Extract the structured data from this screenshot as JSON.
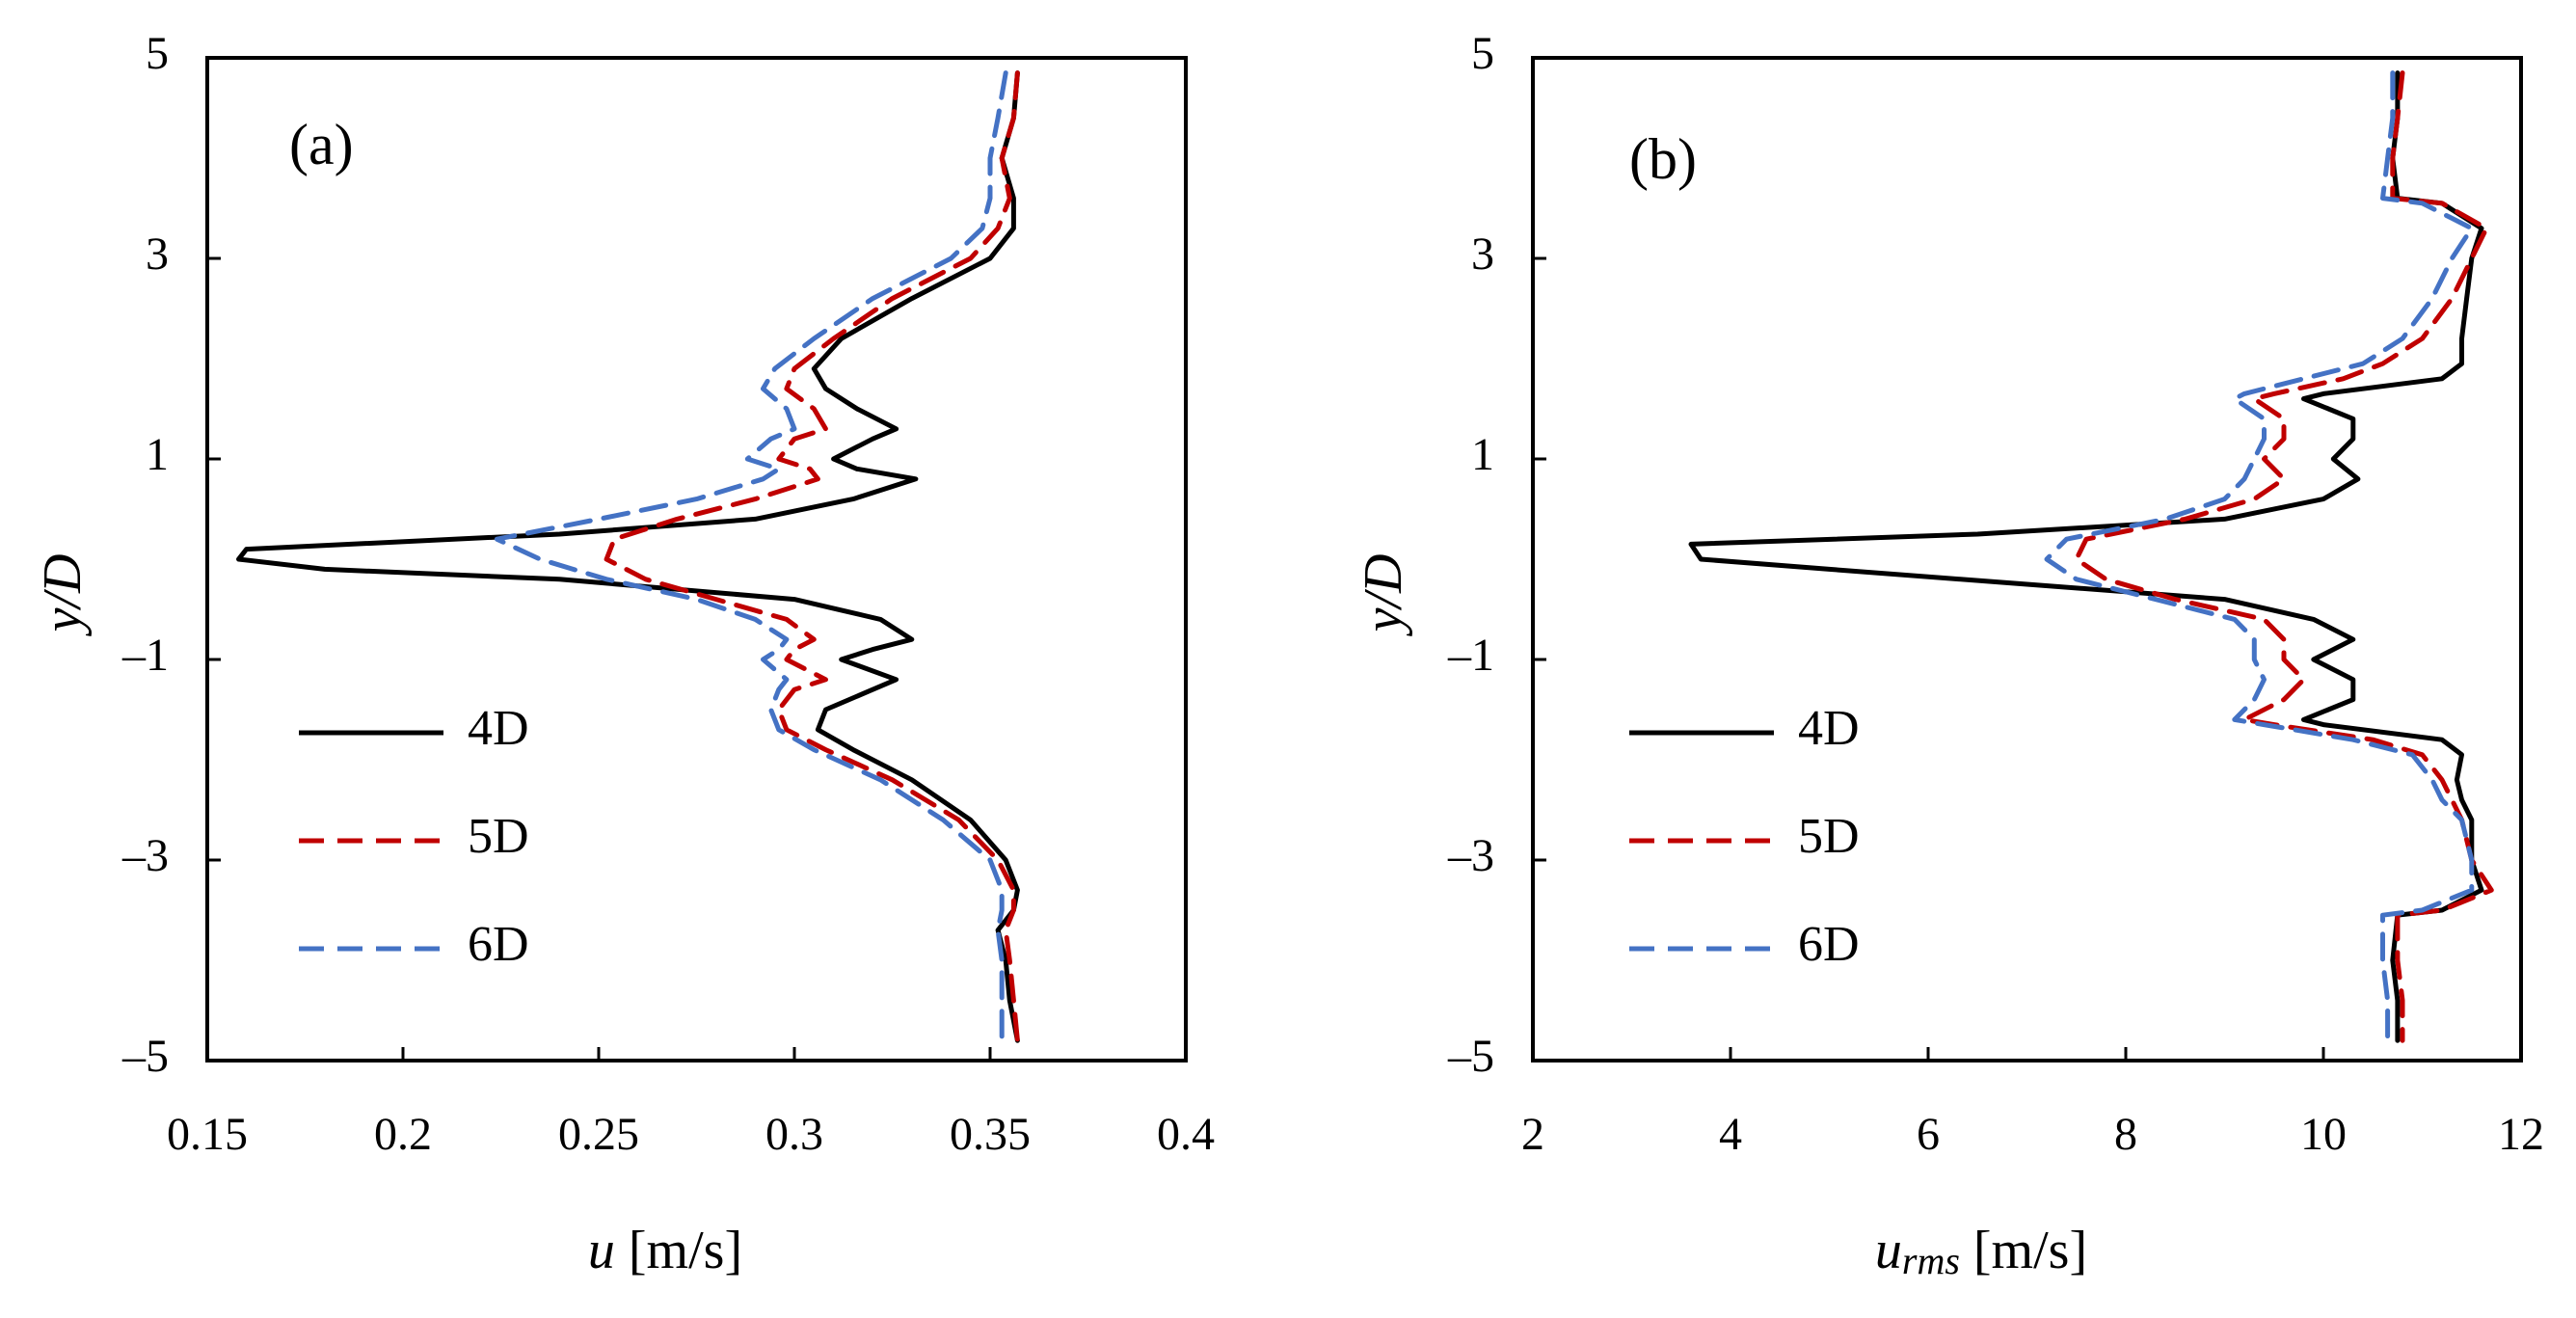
{
  "colors": {
    "4D": "#000000",
    "5D": "#c00000",
    "6D": "#4472c4",
    "axis": "#000000"
  },
  "legend": [
    "4D",
    "5D",
    "6D"
  ],
  "chart_data": [
    {
      "type": "line",
      "panel_label": "(a)",
      "xlabel_main": "u",
      "xlabel_sub": "",
      "xlabel_unit": "[m/s]",
      "ylabel": "y/D",
      "xlim": [
        0.15,
        0.4
      ],
      "ylim": [
        -5,
        5
      ],
      "xticks": [
        "0.15",
        "0.2",
        "0.25",
        "0.3",
        "0.35",
        "0.4"
      ],
      "xtick_values": [
        0.15,
        0.2,
        0.25,
        0.3,
        0.35,
        0.4
      ],
      "yticks": [
        "–5",
        "–3",
        "–1",
        "1",
        "3",
        "5"
      ],
      "ytick_values": [
        -5,
        -3,
        -1,
        1,
        3,
        5
      ],
      "legend_position": "bottom-left",
      "series": [
        {
          "name": "4D",
          "style": "solid",
          "y": [
            4.85,
            4.4,
            4.0,
            3.6,
            3.3,
            3.0,
            2.6,
            2.2,
            1.9,
            1.7,
            1.5,
            1.3,
            1.2,
            1.0,
            0.9,
            0.8,
            0.6,
            0.4,
            0.25,
            0.1,
            0.0,
            -0.1,
            -0.2,
            -0.4,
            -0.6,
            -0.8,
            -0.9,
            -1.0,
            -1.2,
            -1.3,
            -1.5,
            -1.7,
            -1.9,
            -2.2,
            -2.6,
            -3.0,
            -3.3,
            -3.5,
            -3.7,
            -4.0,
            -4.4,
            -4.8
          ],
          "x": [
            0.357,
            0.356,
            0.353,
            0.356,
            0.356,
            0.35,
            0.33,
            0.312,
            0.305,
            0.308,
            0.316,
            0.326,
            0.32,
            0.31,
            0.316,
            0.331,
            0.315,
            0.29,
            0.24,
            0.16,
            0.158,
            0.18,
            0.24,
            0.3,
            0.322,
            0.33,
            0.32,
            0.312,
            0.326,
            0.32,
            0.308,
            0.306,
            0.315,
            0.33,
            0.345,
            0.354,
            0.357,
            0.356,
            0.352,
            0.354,
            0.355,
            0.357
          ]
        },
        {
          "name": "5D",
          "style": "dashed",
          "y": [
            4.85,
            4.4,
            4.0,
            3.6,
            3.3,
            3.0,
            2.6,
            2.2,
            1.9,
            1.7,
            1.5,
            1.3,
            1.2,
            1.0,
            0.9,
            0.8,
            0.6,
            0.4,
            0.2,
            0.0,
            -0.2,
            -0.4,
            -0.6,
            -0.8,
            -0.9,
            -1.0,
            -1.2,
            -1.3,
            -1.5,
            -1.7,
            -1.9,
            -2.2,
            -2.6,
            -3.0,
            -3.3,
            -3.5,
            -3.7,
            -4.0,
            -4.4,
            -4.8
          ],
          "x": [
            0.357,
            0.356,
            0.353,
            0.355,
            0.352,
            0.345,
            0.325,
            0.31,
            0.3,
            0.298,
            0.305,
            0.308,
            0.3,
            0.296,
            0.304,
            0.306,
            0.29,
            0.27,
            0.254,
            0.252,
            0.262,
            0.28,
            0.298,
            0.305,
            0.3,
            0.298,
            0.308,
            0.3,
            0.296,
            0.298,
            0.308,
            0.325,
            0.342,
            0.352,
            0.356,
            0.356,
            0.354,
            0.355,
            0.356,
            0.357
          ]
        },
        {
          "name": "6D",
          "style": "dashed",
          "y": [
            4.85,
            4.4,
            4.0,
            3.6,
            3.3,
            3.0,
            2.6,
            2.2,
            1.9,
            1.7,
            1.5,
            1.3,
            1.2,
            1.0,
            0.9,
            0.8,
            0.6,
            0.4,
            0.2,
            0.0,
            -0.2,
            -0.4,
            -0.6,
            -0.8,
            -0.9,
            -1.0,
            -1.2,
            -1.3,
            -1.5,
            -1.7,
            -1.9,
            -2.2,
            -2.6,
            -3.0,
            -3.3,
            -3.5,
            -3.7,
            -4.0,
            -4.4,
            -4.8
          ],
          "x": [
            0.354,
            0.352,
            0.35,
            0.35,
            0.348,
            0.34,
            0.32,
            0.305,
            0.295,
            0.292,
            0.298,
            0.3,
            0.294,
            0.288,
            0.296,
            0.292,
            0.275,
            0.25,
            0.224,
            0.235,
            0.252,
            0.275,
            0.29,
            0.298,
            0.296,
            0.292,
            0.298,
            0.296,
            0.294,
            0.296,
            0.305,
            0.322,
            0.338,
            0.35,
            0.353,
            0.353,
            0.352,
            0.353,
            0.353,
            0.353
          ]
        }
      ]
    },
    {
      "type": "line",
      "panel_label": "(b)",
      "xlabel_main": "u",
      "xlabel_sub": "rms",
      "xlabel_unit": "[m/s]",
      "ylabel": "y/D",
      "xlim": [
        2,
        12
      ],
      "ylim": [
        -5,
        5
      ],
      "xticks": [
        "2",
        "4",
        "6",
        "8",
        "10",
        "12"
      ],
      "xtick_values": [
        2,
        4,
        6,
        8,
        10,
        12
      ],
      "yticks": [
        "–5",
        "–3",
        "–1",
        "1",
        "3",
        "5"
      ],
      "ytick_values": [
        -5,
        -3,
        -1,
        1,
        3,
        5
      ],
      "legend_position": "bottom-left",
      "series": [
        {
          "name": "4D",
          "style": "solid",
          "y": [
            4.85,
            4.4,
            4.0,
            3.6,
            3.55,
            3.3,
            3.0,
            2.6,
            2.2,
            1.95,
            1.8,
            1.65,
            1.6,
            1.4,
            1.2,
            1.0,
            0.8,
            0.6,
            0.4,
            0.25,
            0.15,
            0.0,
            -0.1,
            -0.25,
            -0.4,
            -0.6,
            -0.8,
            -1.0,
            -1.2,
            -1.4,
            -1.6,
            -1.65,
            -1.8,
            -1.95,
            -2.2,
            -2.4,
            -2.6,
            -3.0,
            -3.3,
            -3.5,
            -3.55,
            -4.0,
            -4.4,
            -4.8
          ],
          "x": [
            10.75,
            10.75,
            10.7,
            10.75,
            11.2,
            11.6,
            11.5,
            11.45,
            11.4,
            11.4,
            11.2,
            10.0,
            9.8,
            10.3,
            10.3,
            10.1,
            10.35,
            10.0,
            9.0,
            6.5,
            3.6,
            3.7,
            5.0,
            7.0,
            9.0,
            9.9,
            10.3,
            9.9,
            10.3,
            10.3,
            9.8,
            10.0,
            11.2,
            11.4,
            11.35,
            11.4,
            11.5,
            11.5,
            11.6,
            11.2,
            10.75,
            10.7,
            10.75,
            10.75
          ]
        },
        {
          "name": "5D",
          "style": "dashed",
          "y": [
            4.85,
            4.4,
            4.0,
            3.6,
            3.55,
            3.3,
            3.0,
            2.6,
            2.2,
            1.95,
            1.8,
            1.65,
            1.6,
            1.4,
            1.2,
            1.0,
            0.8,
            0.6,
            0.4,
            0.2,
            0.0,
            -0.2,
            -0.4,
            -0.6,
            -0.8,
            -1.0,
            -1.2,
            -1.4,
            -1.6,
            -1.65,
            -1.8,
            -1.95,
            -2.2,
            -2.4,
            -2.6,
            -3.0,
            -3.3,
            -3.5,
            -3.55,
            -4.0,
            -4.4,
            -4.8
          ],
          "x": [
            10.8,
            10.75,
            10.7,
            10.7,
            11.2,
            11.65,
            11.5,
            11.3,
            11.0,
            10.6,
            10.2,
            9.5,
            9.3,
            9.6,
            9.6,
            9.4,
            9.6,
            9.3,
            8.6,
            7.6,
            7.5,
            7.8,
            8.5,
            9.4,
            9.6,
            9.6,
            9.8,
            9.6,
            9.2,
            9.5,
            10.5,
            11.0,
            11.2,
            11.3,
            11.4,
            11.5,
            11.7,
            11.2,
            10.75,
            10.75,
            10.8,
            10.8
          ]
        },
        {
          "name": "6D",
          "style": "dashed",
          "y": [
            4.85,
            4.4,
            4.0,
            3.6,
            3.55,
            3.3,
            3.0,
            2.6,
            2.2,
            1.95,
            1.8,
            1.65,
            1.6,
            1.4,
            1.2,
            1.0,
            0.8,
            0.6,
            0.4,
            0.2,
            0.0,
            -0.2,
            -0.4,
            -0.6,
            -0.8,
            -1.0,
            -1.2,
            -1.4,
            -1.6,
            -1.65,
            -1.8,
            -1.95,
            -2.2,
            -2.4,
            -2.6,
            -3.0,
            -3.3,
            -3.5,
            -3.55,
            -4.0,
            -4.4,
            -4.8
          ],
          "x": [
            10.7,
            10.7,
            10.65,
            10.6,
            11.0,
            11.5,
            11.3,
            11.1,
            10.8,
            10.4,
            9.8,
            9.2,
            9.1,
            9.4,
            9.4,
            9.3,
            9.2,
            9.0,
            8.4,
            7.4,
            7.2,
            7.5,
            8.3,
            9.1,
            9.3,
            9.3,
            9.4,
            9.3,
            9.1,
            9.4,
            10.3,
            10.9,
            11.1,
            11.2,
            11.4,
            11.5,
            11.5,
            11.0,
            10.6,
            10.6,
            10.65,
            10.65
          ]
        }
      ]
    }
  ]
}
